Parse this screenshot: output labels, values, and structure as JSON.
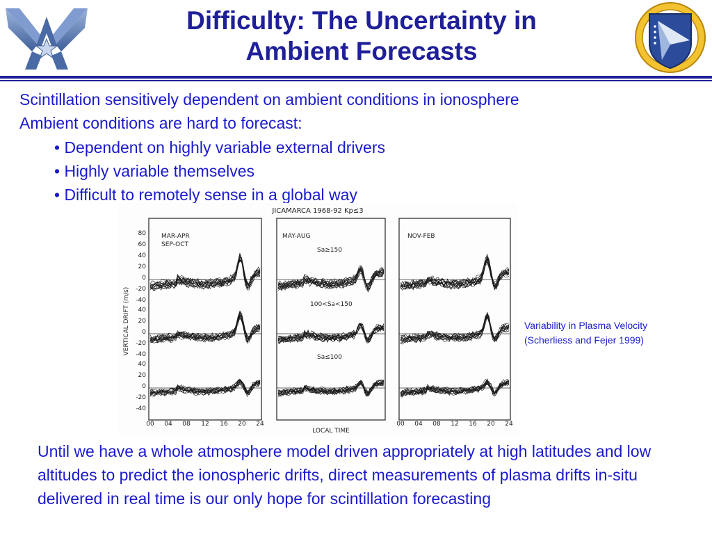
{
  "slide": {
    "title_line1": "Difficulty: The Uncertainty in",
    "title_line2": "Ambient Forecasts",
    "lines": [
      "Scintillation sensitively dependent on ambient conditions in ionosphere",
      "Ambient conditions are hard to forecast:"
    ],
    "bullets": [
      "• Dependent on highly variable external drivers",
      "• Highly variable themselves",
      "• Difficult to remotely sense in a global way"
    ],
    "caption_line1": "Variability in Plasma Velocity",
    "caption_line2": "(Scherliess and Fejer 1999)",
    "closing": " Until we have a whole atmosphere model driven appropriately at high latitudes and low altitudes to predict the ionospheric drifts, direct measurements of plasma drifts in-situ delivered in real time is our only hope for scintillation forecasting"
  },
  "figure": {
    "header": "JICAMARCA 1968-92   Kp≤3",
    "ylabel": "VERTICAL DRIFT (m/s)",
    "xlabel": "LOCAL TIME",
    "panel_labels": [
      "MAR-APR",
      "SEP-OCT",
      "MAY-AUG",
      "NOV-FEB"
    ],
    "flux_labels": [
      "Sa≥150",
      "100<Sa<150",
      "Sa≤100"
    ],
    "y_ticks_top": [
      "80",
      "60",
      "40",
      "20",
      "0",
      "-20",
      "-40"
    ],
    "y_ticks_mid": [
      "40",
      "20",
      "0",
      "-20",
      "-40"
    ],
    "y_ticks_bot": [
      "40",
      "20",
      "0",
      "-20",
      "-40"
    ],
    "x_ticks": [
      "00",
      "04",
      "08",
      "12",
      "16",
      "20",
      "24"
    ]
  },
  "colors": {
    "title": "#1f1f99",
    "text": "#1a1acc",
    "rule": "#1f1f99"
  },
  "icons": {
    "left": "air-force-wings-logo-icon",
    "right": "afrl-shield-emblem-icon"
  }
}
